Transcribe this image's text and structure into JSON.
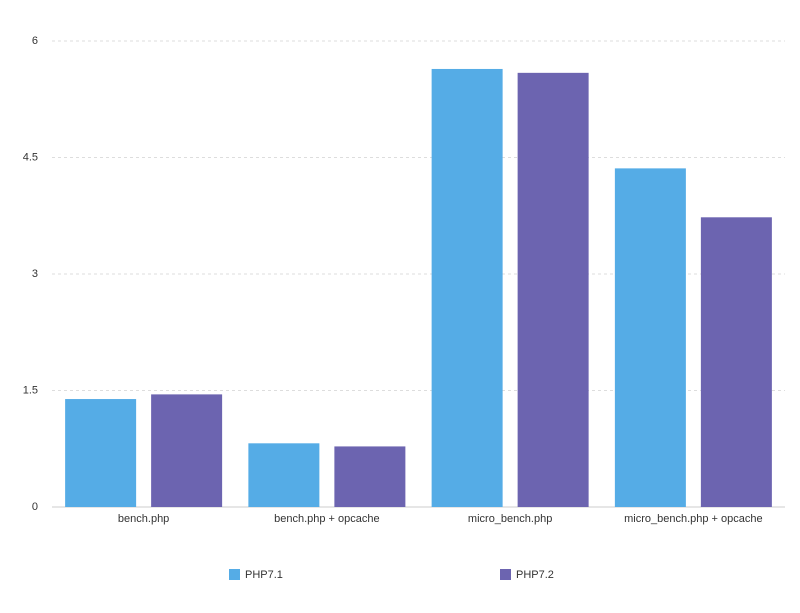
{
  "chart_data": {
    "type": "bar",
    "categories": [
      "bench.php",
      "bench.php + opcache",
      "micro_bench.php",
      "micro_bench.php + opcache"
    ],
    "series": [
      {
        "name": "PHP7.1",
        "color": "#55ace6",
        "values": [
          1.39,
          0.82,
          5.64,
          4.36
        ]
      },
      {
        "name": "PHP7.2",
        "color": "#6c64b0",
        "values": [
          1.45,
          0.78,
          5.59,
          3.73
        ]
      }
    ],
    "ylim": [
      0,
      6
    ],
    "yticks": [
      0,
      1.5,
      3,
      4.5,
      6
    ],
    "grid": true,
    "legend": "bottom"
  }
}
